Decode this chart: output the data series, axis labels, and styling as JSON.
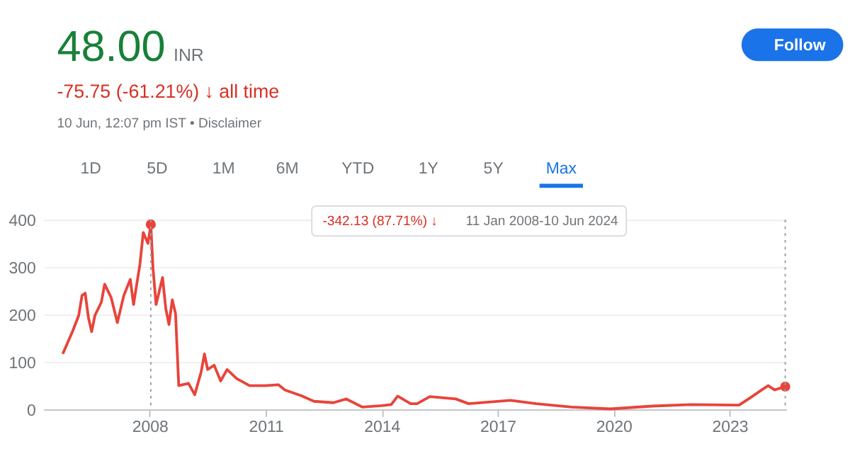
{
  "chart_data": {
    "type": "line",
    "title": "48.00",
    "subtitle": "-75.75 (-61.21%) ↓ all time",
    "annotations": [
      "INR",
      "10 Jun, 12:07 pm IST • Disclaimer",
      "Follow",
      "1D",
      "5D",
      "1M",
      "6M",
      "YTD",
      "1Y",
      "5Y",
      "Max",
      "-342.13 (87.71%) ↓",
      "11 Jan 2008-10 Jun 2024"
    ],
    "xlim": [
      "2005-04-01",
      "2024-06-20"
    ],
    "xticks": [
      {
        "value": "2008",
        "label": "2008"
      },
      {
        "value": "2011",
        "label": "2011"
      },
      {
        "value": "2014",
        "label": "2014"
      },
      {
        "value": "2017",
        "label": "2017"
      },
      {
        "value": "2020",
        "label": "2020"
      },
      {
        "value": "2023",
        "label": "2023"
      }
    ],
    "ylim": [
      0,
      400
    ],
    "yticks": [
      0,
      100,
      200,
      300,
      400
    ],
    "grid": "y",
    "series": [
      {
        "color": "#e8443a",
        "marker": "none",
        "x": [
          "2005-10",
          "2006-01",
          "2006-03",
          "2006-04",
          "2006-05",
          "2006-06",
          "2006-07",
          "2006-08",
          "2006-10",
          "2006-11",
          "2007-01",
          "2007-03",
          "2007-05",
          "2007-07",
          "2007-08",
          "2007-10",
          "2007-11",
          "2007-12-15",
          "2008-01-11",
          "2008-02",
          "2008-03",
          "2008-05",
          "2008-06",
          "2008-07",
          "2008-08",
          "2008-09",
          "2008-10",
          "2009-01",
          "2009-03",
          "2009-05",
          "2009-06",
          "2009-07",
          "2009-09",
          "2009-11",
          "2010-01",
          "2010-04",
          "2010-08",
          "2011-01",
          "2011-05",
          "2011-07",
          "2011-12",
          "2012-04",
          "2012-10",
          "2013-02",
          "2013-07",
          "2014-01",
          "2014-04",
          "2014-06",
          "2014-10",
          "2014-12",
          "2015-04",
          "2015-12",
          "2016-04",
          "2017-05",
          "2018-01",
          "2018-12",
          "2019-12",
          "2021-01",
          "2022-01",
          "2023-04",
          "2023-08",
          "2023-11",
          "2024-01",
          "2024-03",
          "2024-06-10"
        ],
        "values": [
          117,
          164,
          198,
          240,
          245,
          193,
          164,
          198,
          226,
          264,
          236,
          183,
          240,
          274,
          221,
          307,
          373,
          350,
          390,
          297,
          221,
          278,
          212,
          179,
          231,
          202,
          50,
          55,
          31,
          79,
          117,
          84,
          93,
          60,
          84,
          65,
          50,
          50,
          52,
          41,
          29,
          17,
          14,
          22,
          5,
          8,
          10,
          28,
          12,
          12,
          27,
          22,
          12,
          19,
          12,
          5,
          1,
          7,
          10,
          9,
          27,
          41,
          50,
          41,
          48
        ]
      },
      {
        "type": "scatter",
        "color": "#e8443a",
        "marker": "circle",
        "x": [
          "2008-01-11",
          "2024-06-10"
        ],
        "values": [
          390,
          48
        ]
      }
    ],
    "ref_lines": [
      {
        "axis": "x",
        "value": "2008-01-11",
        "color": "#9aa0a6",
        "line_style": "dotted"
      },
      {
        "axis": "x",
        "value": "2024-06-10",
        "color": "#9aa0a6",
        "line_style": "dotted"
      }
    ]
  }
}
